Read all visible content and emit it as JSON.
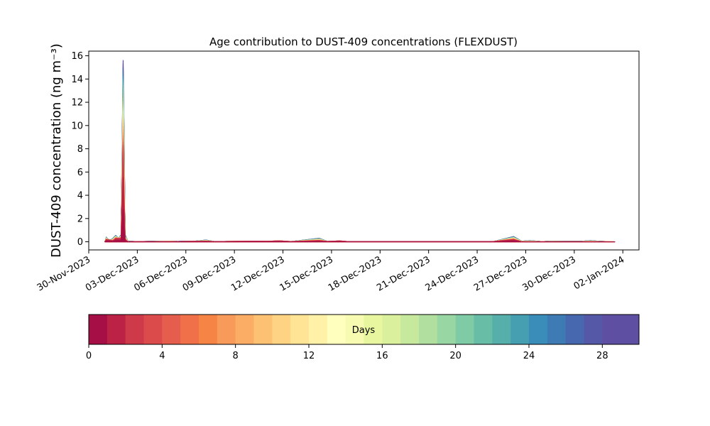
{
  "chart_data": {
    "type": "area",
    "title": "Age contribution to DUST-409 concentrations (FLEXDUST)",
    "ylabel": "DUST-409 concentration (ng m⁻³)",
    "xlabel": "",
    "xlim": [
      "2023-11-30",
      "2024-01-03"
    ],
    "ylim": [
      -0.7,
      16.4
    ],
    "y_ticks": [
      0,
      2,
      4,
      6,
      8,
      10,
      12,
      14,
      16
    ],
    "x_ticks": [
      "30-Nov-2023",
      "03-Dec-2023",
      "06-Dec-2023",
      "09-Dec-2023",
      "12-Dec-2023",
      "15-Dec-2023",
      "18-Dec-2023",
      "21-Dec-2023",
      "24-Dec-2023",
      "27-Dec-2023",
      "30-Dec-2023",
      "02-Jan-2024"
    ],
    "x_tick_dates": [
      "2023-11-30",
      "2023-12-03",
      "2023-12-06",
      "2023-12-09",
      "2023-12-12",
      "2023-12-15",
      "2023-12-18",
      "2023-12-21",
      "2023-12-24",
      "2023-12-27",
      "2023-12-30",
      "2024-01-02"
    ],
    "series_layers": 30,
    "total_concentration": [
      {
        "t": "2023-12-01T00:00",
        "y": 0
      },
      {
        "t": "2023-12-01T02:00",
        "y": 0.4
      },
      {
        "t": "2023-12-01T04:00",
        "y": 0.25
      },
      {
        "t": "2023-12-01T08:00",
        "y": 0.15
      },
      {
        "t": "2023-12-01T12:00",
        "y": 0.3
      },
      {
        "t": "2023-12-01T16:00",
        "y": 0.55
      },
      {
        "t": "2023-12-01T20:00",
        "y": 0.3
      },
      {
        "t": "2023-12-02T00:00",
        "y": 0.6
      },
      {
        "t": "2023-12-02T03:00",
        "y": 15.6
      },
      {
        "t": "2023-12-02T04:30",
        "y": 9.0
      },
      {
        "t": "2023-12-02T06:00",
        "y": 0.6
      },
      {
        "t": "2023-12-02T10:00",
        "y": 0.05
      },
      {
        "t": "2023-12-03T00:00",
        "y": 0.02
      },
      {
        "t": "2023-12-04T12:00",
        "y": 0.05
      },
      {
        "t": "2023-12-05T00:00",
        "y": 0.06
      },
      {
        "t": "2023-12-05T12:00",
        "y": 0.03
      },
      {
        "t": "2023-12-06T12:00",
        "y": 0.04
      },
      {
        "t": "2023-12-07T06:00",
        "y": 0.15
      },
      {
        "t": "2023-12-07T18:00",
        "y": 0.02
      },
      {
        "t": "2023-12-10T06:00",
        "y": 0.05
      },
      {
        "t": "2023-12-11T00:00",
        "y": 0.04
      },
      {
        "t": "2023-12-11T18:00",
        "y": 0.08
      },
      {
        "t": "2023-12-12T12:00",
        "y": 0.02
      },
      {
        "t": "2023-12-14T06:00",
        "y": 0.3
      },
      {
        "t": "2023-12-14T18:00",
        "y": 0.03
      },
      {
        "t": "2023-12-15T12:00",
        "y": 0.07
      },
      {
        "t": "2023-12-16T00:00",
        "y": 0.02
      },
      {
        "t": "2023-12-25T00:00",
        "y": 0.02
      },
      {
        "t": "2023-12-26T06:00",
        "y": 0.45
      },
      {
        "t": "2023-12-26T18:00",
        "y": 0.05
      },
      {
        "t": "2023-12-27T06:00",
        "y": 0.1
      },
      {
        "t": "2023-12-28T00:00",
        "y": 0.02
      },
      {
        "t": "2023-12-28T12:00",
        "y": 0.05
      },
      {
        "t": "2023-12-29T12:00",
        "y": 0.04
      },
      {
        "t": "2023-12-30T12:00",
        "y": 0.05
      },
      {
        "t": "2023-12-31T00:00",
        "y": 0.1
      },
      {
        "t": "2023-12-31T12:00",
        "y": 0.05
      },
      {
        "t": "2024-01-01T12:00",
        "y": 0.0
      }
    ],
    "youngest_layers_peak": [
      {
        "t": "2023-12-01T00:00",
        "y": 0
      },
      {
        "t": "2023-12-01T02:00",
        "y": 0.2
      },
      {
        "t": "2023-12-01T12:00",
        "y": 0.1
      },
      {
        "t": "2023-12-01T16:00",
        "y": 0.3
      },
      {
        "t": "2023-12-02T00:00",
        "y": 0.3
      },
      {
        "t": "2023-12-02T03:00",
        "y": 8.3
      },
      {
        "t": "2023-12-02T04:30",
        "y": 3.0
      },
      {
        "t": "2023-12-02T06:00",
        "y": 0.2
      },
      {
        "t": "2023-12-02T10:00",
        "y": 0.0
      },
      {
        "t": "2023-12-26T06:00",
        "y": 0.2
      },
      {
        "t": "2023-12-26T18:00",
        "y": 0.0
      },
      {
        "t": "2024-01-01T12:00",
        "y": 0.0
      }
    ],
    "colorbar": {
      "label": "Days",
      "min": 0,
      "max": 30,
      "ticks": [
        0,
        4,
        8,
        12,
        16,
        20,
        24,
        28
      ],
      "colors": [
        "#a50f45",
        "#bb2245",
        "#cf3a4a",
        "#dc4b4b",
        "#e55e4d",
        "#ef7049",
        "#f58445",
        "#f89a59",
        "#fbad66",
        "#fdc173",
        "#fed383",
        "#fee494",
        "#fff1a8",
        "#ffffbe",
        "#f7fbb1",
        "#e9f6a0",
        "#daf09d",
        "#c6e99d",
        "#b0df9f",
        "#98d6a3",
        "#7fcba5",
        "#68bda6",
        "#56afaa",
        "#459fb1",
        "#3a8db8",
        "#3e7bb4",
        "#4768ae",
        "#5558a6",
        "#5e4fa2",
        "#5e4fa2"
      ]
    }
  }
}
